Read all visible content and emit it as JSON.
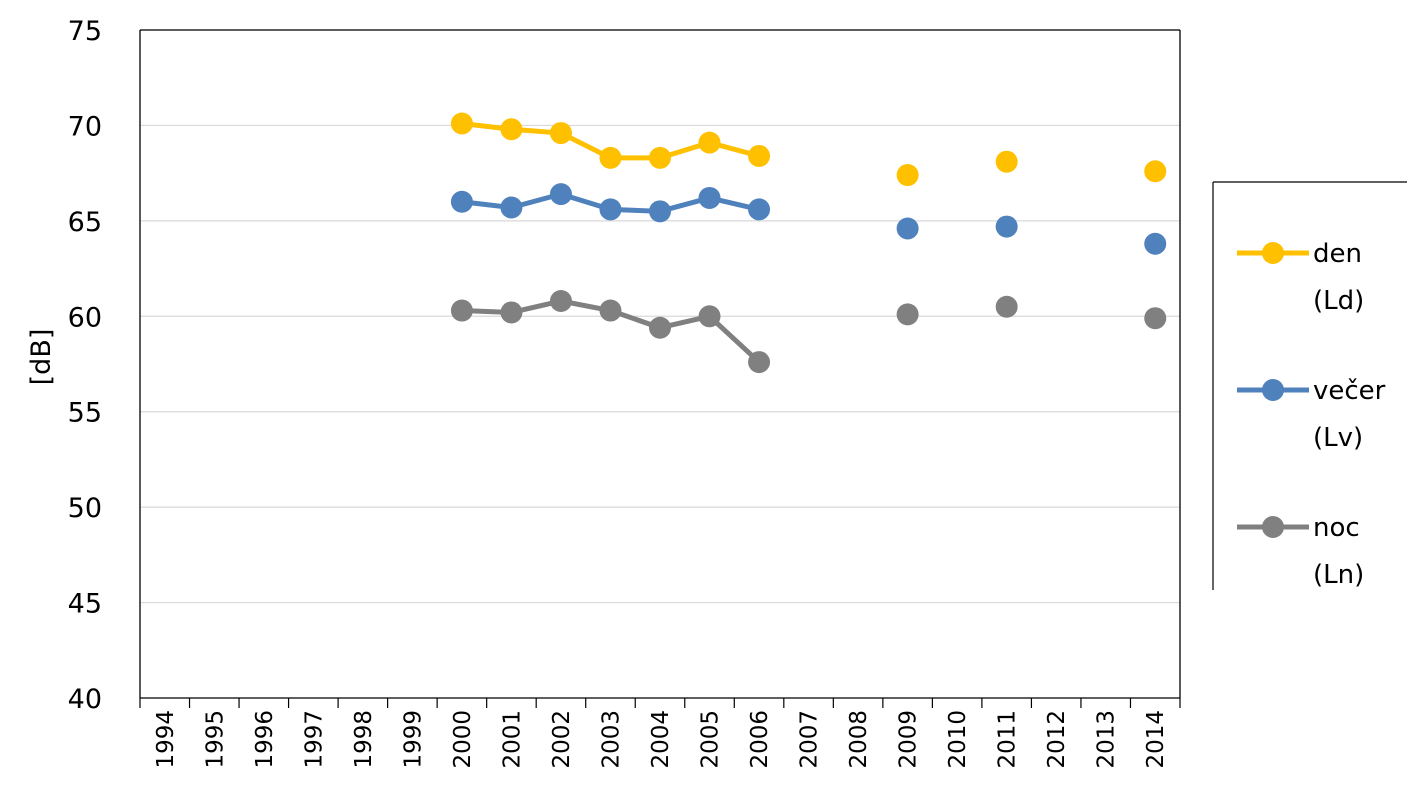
{
  "chart_data": {
    "type": "line",
    "title": "",
    "xlabel": "",
    "ylabel": "[dB]",
    "ylim": [
      40,
      75
    ],
    "yticks": [
      40,
      45,
      50,
      55,
      60,
      65,
      70,
      75
    ],
    "categories": [
      "1994",
      "1995",
      "1996",
      "1997",
      "1998",
      "1999",
      "2000",
      "2001",
      "2002",
      "2003",
      "2004",
      "2005",
      "2006",
      "2007",
      "2008",
      "2009",
      "2010",
      "2011",
      "2012",
      "2013",
      "2014"
    ],
    "grid": "horizontal",
    "legend_position": "right",
    "series": [
      {
        "name": "den (Ld)",
        "legend_lines": [
          "den",
          "(Ld)"
        ],
        "color": "#FFC000",
        "values": [
          null,
          null,
          null,
          null,
          null,
          null,
          70.1,
          69.8,
          69.6,
          68.3,
          68.3,
          69.1,
          68.4,
          null,
          null,
          67.4,
          null,
          68.1,
          null,
          null,
          67.6
        ]
      },
      {
        "name": "večer (Lv)",
        "legend_lines": [
          "večer",
          "(Lv)"
        ],
        "color": "#4F81BD",
        "values": [
          null,
          null,
          null,
          null,
          null,
          null,
          66.0,
          65.7,
          66.4,
          65.6,
          65.5,
          66.2,
          65.6,
          null,
          null,
          64.6,
          null,
          64.7,
          null,
          null,
          63.8
        ]
      },
      {
        "name": "noc (Ln)",
        "legend_lines": [
          "noc",
          "(Ln)"
        ],
        "color": "#808080",
        "values": [
          null,
          null,
          null,
          null,
          null,
          null,
          60.3,
          60.2,
          60.8,
          60.3,
          59.4,
          60.0,
          57.6,
          null,
          null,
          60.1,
          null,
          60.5,
          null,
          null,
          59.9
        ]
      }
    ]
  }
}
